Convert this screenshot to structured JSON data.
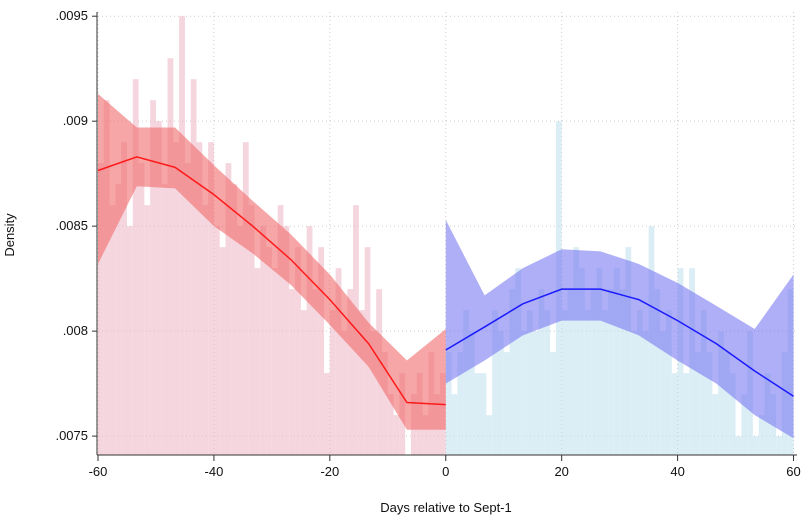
{
  "chart_data": {
    "type": "histogram",
    "x_label": "Days relative to Sept-1",
    "y_label": "Density",
    "xlim": [
      -60,
      60.6
    ],
    "ylim": [
      0.00741,
      0.00952
    ],
    "xticks": [
      -60,
      -40,
      -20,
      0,
      20,
      40,
      60
    ],
    "yticks": [
      {
        "value": 0.0075,
        "label": ".0075"
      },
      {
        "value": 0.008,
        "label": ".008"
      },
      {
        "value": 0.0085,
        "label": ".0085"
      },
      {
        "value": 0.009,
        "label": ".009"
      },
      {
        "value": 0.0095,
        "label": ".0095"
      }
    ],
    "grid": true,
    "histograms": [
      {
        "color": "#ecb4c2",
        "bins": [
          -60,
          -59,
          -58,
          -57,
          -56,
          -55,
          -54,
          -53,
          -52,
          -51,
          -50,
          -49,
          -48,
          -47,
          -46,
          -45,
          -44,
          -43,
          -42,
          -41,
          -40,
          -39,
          -38,
          -37,
          -36,
          -35,
          -34,
          -33,
          -32,
          -31,
          -30,
          -29,
          -28,
          -27,
          -26,
          -25,
          -24,
          -23,
          -22,
          -21,
          -20,
          -19,
          -18,
          -17,
          -16,
          -15,
          -14,
          -13,
          -12,
          -11,
          -10,
          -9,
          -8,
          -7,
          -6,
          -5,
          -4,
          -3,
          -2,
          -1,
          0
        ],
        "values": [
          0.0088,
          0.0091,
          0.0086,
          0.0087,
          0.0089,
          0.0085,
          0.0092,
          0.0088,
          0.0086,
          0.0091,
          0.009,
          0.0087,
          0.0093,
          0.0089,
          0.0095,
          0.0088,
          0.0092,
          0.0089,
          0.0086,
          0.0089,
          0.0085,
          0.0084,
          0.0088,
          0.0087,
          0.0085,
          0.0089,
          0.0086,
          0.0083,
          0.0085,
          0.0084,
          0.0083,
          0.0086,
          0.0085,
          0.0082,
          0.0084,
          0.0081,
          0.0085,
          0.0082,
          0.0084,
          0.0078,
          0.0081,
          0.0083,
          0.008,
          0.0082,
          0.0086,
          0.0081,
          0.0084,
          0.008,
          0.0082,
          0.0079,
          0.0077,
          0.0076,
          0.0078,
          0.0074,
          0.0077,
          0.0078,
          0.0076,
          0.0079,
          0.0077,
          0.0078
        ]
      },
      {
        "color": "#bfe0ec",
        "bins": [
          0,
          1,
          2,
          3,
          4,
          5,
          6,
          7,
          8,
          9,
          10,
          11,
          12,
          13,
          14,
          15,
          16,
          17,
          18,
          19,
          20,
          21,
          22,
          23,
          24,
          25,
          26,
          27,
          28,
          29,
          30,
          31,
          32,
          33,
          34,
          35,
          36,
          37,
          38,
          39,
          40,
          41,
          42,
          43,
          44,
          45,
          46,
          47,
          48,
          49,
          50,
          51,
          52,
          53,
          54,
          55,
          56,
          57,
          58,
          59,
          60
        ],
        "values": [
          0.0079,
          0.0077,
          0.0079,
          0.0081,
          0.008,
          0.0078,
          0.0078,
          0.0076,
          0.0081,
          0.008,
          0.0079,
          0.0082,
          0.0083,
          0.008,
          0.0081,
          0.008,
          0.0082,
          0.0081,
          0.0079,
          0.009,
          0.0081,
          0.0082,
          0.0084,
          0.0083,
          0.0081,
          0.0082,
          0.0083,
          0.0081,
          0.0082,
          0.0083,
          0.0082,
          0.0084,
          0.008,
          0.0081,
          0.008,
          0.0085,
          0.0082,
          0.008,
          0.0081,
          0.0078,
          0.0083,
          0.0078,
          0.0083,
          0.0079,
          0.0081,
          0.0079,
          0.0077,
          0.008,
          0.0079,
          0.0078,
          0.0075,
          0.0077,
          0.008,
          0.0075,
          0.0076,
          0.0078,
          0.0077,
          0.0075,
          0.0079,
          0.0082
        ]
      }
    ],
    "fits": [
      {
        "color": "#ff1a1a",
        "band_color": "#f06a6a",
        "x": [
          -60,
          -53.3,
          -46.7,
          -40,
          -33.3,
          -26.7,
          -20,
          -13.3,
          -6.7,
          0
        ],
        "values": [
          0.008765,
          0.00883,
          0.00878,
          0.00865,
          0.0085,
          0.00834,
          0.00815,
          0.00794,
          0.00766,
          0.00765
        ],
        "upper": [
          0.00913,
          0.00897,
          0.00897,
          0.00879,
          0.00862,
          0.00846,
          0.00827,
          0.00804,
          0.00786,
          0.00801
        ],
        "lower": [
          0.00832,
          0.00869,
          0.00868,
          0.0085,
          0.00837,
          0.00822,
          0.00803,
          0.00783,
          0.00753,
          0.00753
        ]
      },
      {
        "color": "#1a1aff",
        "band_color": "#7a7af2",
        "x": [
          0,
          6.7,
          13.3,
          20,
          26.7,
          33.3,
          40,
          46.7,
          53.3,
          60
        ],
        "values": [
          0.00791,
          0.00802,
          0.00813,
          0.0082,
          0.0082,
          0.00815,
          0.00805,
          0.00794,
          0.00781,
          0.00769
        ],
        "upper": [
          0.00853,
          0.00817,
          0.0083,
          0.00839,
          0.00838,
          0.00832,
          0.00823,
          0.00812,
          0.00801,
          0.00827
        ],
        "lower": [
          0.00775,
          0.00786,
          0.00798,
          0.00805,
          0.00805,
          0.00798,
          0.00786,
          0.00775,
          0.0076,
          0.00749
        ]
      }
    ]
  }
}
